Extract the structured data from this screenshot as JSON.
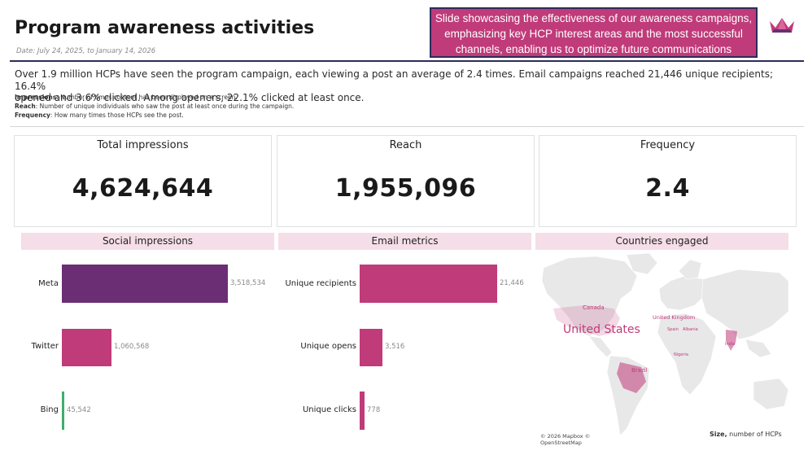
{
  "header": {
    "title": "Program awareness activities",
    "date_range": "Date: July 24, 2025, to January 14, 2026",
    "callout_line1": "Slide showcasing the effectiveness of our awareness campaigns,",
    "callout_line2": "emphasizing key HCP interest areas and the most successful",
    "callout_line3": "channels, enabling us to optimize future communications",
    "logo_icon": "crown-icon"
  },
  "summary": {
    "line1": "Over 1.9 million HCPs have seen the program campaign, each viewing a post an average of 2.4 times. Email campaigns reached 21,446 unique recipients; 16.4%",
    "line2": "opened and 3.6% clicked. Among openers, 22.1% clicked at least once.",
    "definitions": [
      {
        "term": "Impressions",
        "text": ": Number of times content has been displayed on a screen."
      },
      {
        "term": "Reach",
        "text": ": Number of unique individuals who saw the post at least once during the campaign."
      },
      {
        "term": "Frequency",
        "text": ": How many times those HCPs see the post."
      }
    ]
  },
  "kpis": [
    {
      "label": "Total impressions",
      "value": "4,624,644"
    },
    {
      "label": "Reach",
      "value": "1,955,096"
    },
    {
      "label": "Frequency",
      "value": "2.4"
    }
  ],
  "panels": {
    "social_title": "Social impressions",
    "email_title": "Email metrics",
    "countries_title": "Countries engaged"
  },
  "chart_data": [
    {
      "type": "bar",
      "orientation": "horizontal",
      "title": "Social impressions",
      "categories": [
        "Meta",
        "Twitter",
        "Bing"
      ],
      "values": [
        3518534,
        1060568,
        45542
      ],
      "value_labels": [
        "3,518,534",
        "1,060,568",
        "45,542"
      ],
      "colors": [
        "#6b2d73",
        "#c03b7a",
        "#3fae6b"
      ],
      "xlim": [
        0,
        3518534
      ]
    },
    {
      "type": "bar",
      "orientation": "horizontal",
      "title": "Email metrics",
      "categories": [
        "Unique recipients",
        "Unique opens",
        "Unique clicks"
      ],
      "values": [
        21446,
        3516,
        778
      ],
      "value_labels": [
        "21,446",
        "3,516",
        "778"
      ],
      "colors": [
        "#c03b7a",
        "#c03b7a",
        "#c03b7a"
      ],
      "xlim": [
        0,
        21446
      ]
    }
  ],
  "map": {
    "countries": [
      {
        "name": "United States",
        "size": "large"
      },
      {
        "name": "Canada",
        "size": "small"
      },
      {
        "name": "Brazil",
        "size": "small"
      },
      {
        "name": "United Kingdom",
        "size": "small"
      },
      {
        "name": "Spain",
        "size": "tiny"
      },
      {
        "name": "Albania",
        "size": "tiny"
      },
      {
        "name": "India",
        "size": "tiny"
      },
      {
        "name": "Nigeria",
        "size": "tiny"
      }
    ],
    "attribution_line1": "© 2026 Mapbox ©",
    "attribution_line2": "OpenStreetMap",
    "legend_size_term": "Size,",
    "legend_size_text": " number of HCPs",
    "highlight_color": "#c03b7a",
    "land_color": "#e8e8e8"
  }
}
